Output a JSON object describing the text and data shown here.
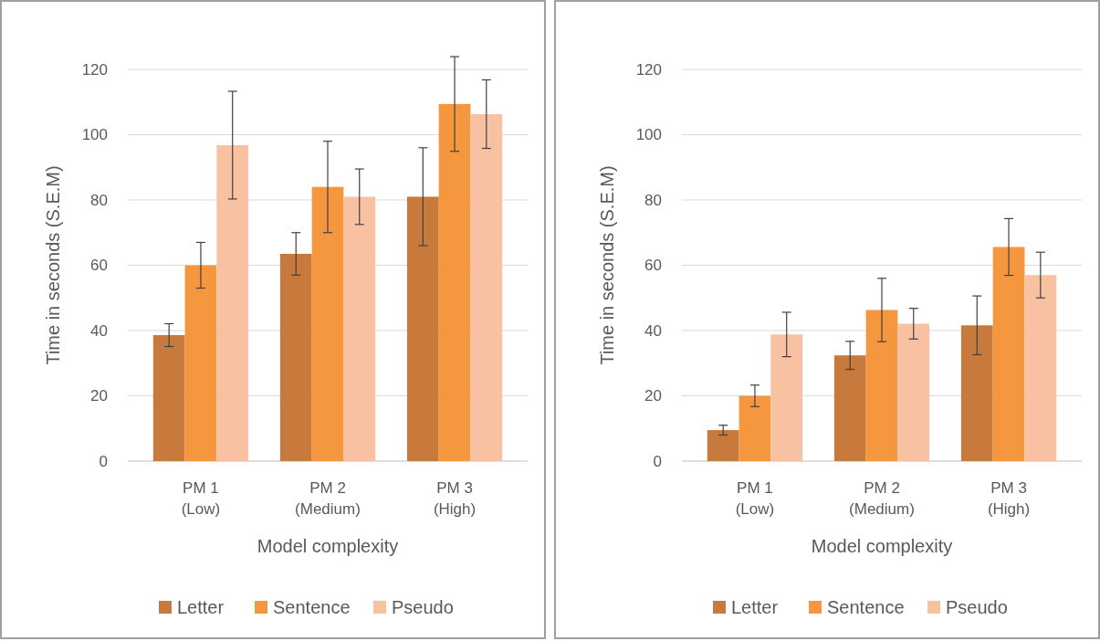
{
  "chart_data": [
    {
      "type": "bar",
      "categories": [
        "PM 1\n(Low)",
        "PM 2\n(Medium)",
        "PM 3\n(High)"
      ],
      "xlabel": "Model complexity",
      "ylabel": "Time in seconds (S.E.M)",
      "ylim": [
        0,
        120
      ],
      "yticks": [
        0,
        20,
        40,
        60,
        80,
        100,
        120
      ],
      "grid": "y",
      "legend": "bottom",
      "series": [
        {
          "name": "Letter",
          "color": "#c87a3c",
          "values": [
            38.6,
            63.5,
            81
          ],
          "errors": [
            3.5,
            6.5,
            15
          ]
        },
        {
          "name": "Sentence",
          "color": "#f5973f",
          "values": [
            60,
            84,
            109.4
          ],
          "errors": [
            7,
            14,
            14.5
          ]
        },
        {
          "name": "Pseudo",
          "color": "#f8c1a2",
          "values": [
            96.8,
            81,
            106.3
          ],
          "errors": [
            16.5,
            8.5,
            10.5
          ]
        }
      ]
    },
    {
      "type": "bar",
      "categories": [
        "PM 1\n(Low)",
        "PM 2\n(Medium)",
        "PM 3\n(High)"
      ],
      "xlabel": "Model complexity",
      "ylabel": "Time in seconds (S.E.M)",
      "ylim": [
        0,
        120
      ],
      "yticks": [
        0,
        20,
        40,
        60,
        80,
        100,
        120
      ],
      "grid": "y",
      "legend": "bottom",
      "series": [
        {
          "name": "Letter",
          "color": "#c87a3c",
          "values": [
            9.5,
            32.4,
            41.6
          ],
          "errors": [
            1.5,
            4.3,
            9
          ]
        },
        {
          "name": "Sentence",
          "color": "#f5973f",
          "values": [
            20,
            46.3,
            65.6
          ],
          "errors": [
            3.3,
            9.7,
            8.7
          ]
        },
        {
          "name": "Pseudo",
          "color": "#f8c1a2",
          "values": [
            38.8,
            42.1,
            57
          ],
          "errors": [
            6.8,
            4.7,
            7
          ]
        }
      ]
    }
  ]
}
